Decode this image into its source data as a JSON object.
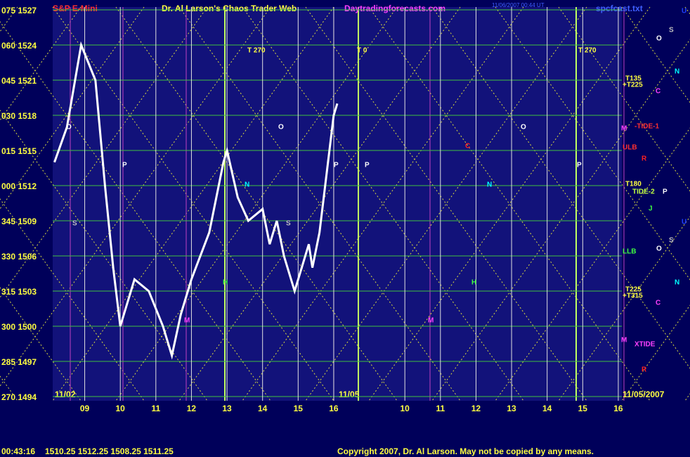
{
  "chart_data": {
    "type": "line",
    "title": "Dr. Al Larson's Chaos Trader Web",
    "symbol": "S&P E-Mini",
    "site": "Daytradingforecasts.com",
    "timestamp": "11/06/2007 00:44 UT",
    "file": "spcfcast.txt",
    "clock": "00:43:16",
    "quote": "1510.25 1512.25 1508.25 1511.25",
    "copyright": "Copyright 2007, Dr. Al Larson. May not be copied by any means.",
    "dates": [
      "11/02",
      "11/05",
      "11/05/2007"
    ],
    "x": [
      8.15,
      8.5,
      8.9,
      9.3,
      9.57,
      9.8,
      10,
      10.4,
      10.8,
      11.2,
      11.45,
      11.7,
      12,
      12.5,
      12.9,
      13,
      13.3,
      13.6,
      14,
      14.2,
      14.4,
      14.6,
      14.9,
      15.1,
      15.3,
      15.4,
      15.6,
      15.8,
      16,
      16.1
    ],
    "series": [
      {
        "color": "#ffffff",
        "values": [
          1514,
          1517,
          1524,
          1521,
          1512,
          1505,
          1500,
          1504,
          1503,
          1500,
          1497.5,
          1501,
          1504,
          1508,
          1514,
          1515,
          1511,
          1509,
          1510,
          1507,
          1509,
          1506,
          1503,
          1505,
          1507,
          1505,
          1508,
          1513,
          1518,
          1519
        ]
      }
    ],
    "xlim": [
      8.1,
      24.1
    ],
    "ylim": [
      1493.64,
      1527.24
    ],
    "xticks": [
      {
        "value": 9,
        "label": "09"
      },
      10,
      11,
      12,
      13,
      14,
      15,
      16,
      {
        "value": 18,
        "label": "10"
      },
      {
        "value": 19,
        "label": "11"
      },
      {
        "value": 20,
        "label": "12"
      },
      {
        "value": 21,
        "label": "13"
      },
      {
        "value": 22,
        "label": "14"
      },
      {
        "value": 23,
        "label": "15"
      },
      {
        "value": 24,
        "label": "16"
      }
    ],
    "yticks": [
      {
        "value": 1527,
        "label": "075 1527"
      },
      {
        "value": 1524,
        "label": "060 1524"
      },
      {
        "value": 1521,
        "label": "045 1521"
      },
      {
        "value": 1518,
        "label": "030 1518"
      },
      {
        "value": 1515,
        "label": "015 1515"
      },
      {
        "value": 1512,
        "label": "000 1512"
      },
      {
        "value": 1509,
        "label": "345 1509"
      },
      {
        "value": 1506,
        "label": "330 1506"
      },
      {
        "value": 1503,
        "label": "315 1503"
      },
      {
        "value": 1500,
        "label": "300 1500"
      },
      {
        "value": 1497,
        "label": "285 1497"
      },
      {
        "value": 1494,
        "label": "270 1494"
      }
    ],
    "grid": true,
    "annotations": [
      "T 270",
      "T 0",
      "T 270",
      "T135",
      "+T225",
      "-TIDE-1",
      "ULB",
      "T180",
      "TIDE-2",
      "LLB",
      "T225",
      "+T315",
      "XTIDE",
      "O",
      "S",
      "N",
      "C",
      "R",
      "P",
      "J",
      "O",
      "S",
      "N",
      "C",
      "R",
      "O",
      "O",
      "O",
      "P",
      "P",
      "P",
      "P",
      "S",
      "S",
      "M",
      "M",
      "M",
      "M",
      "N",
      "N",
      "C",
      "H",
      "H",
      "U",
      "U"
    ]
  }
}
